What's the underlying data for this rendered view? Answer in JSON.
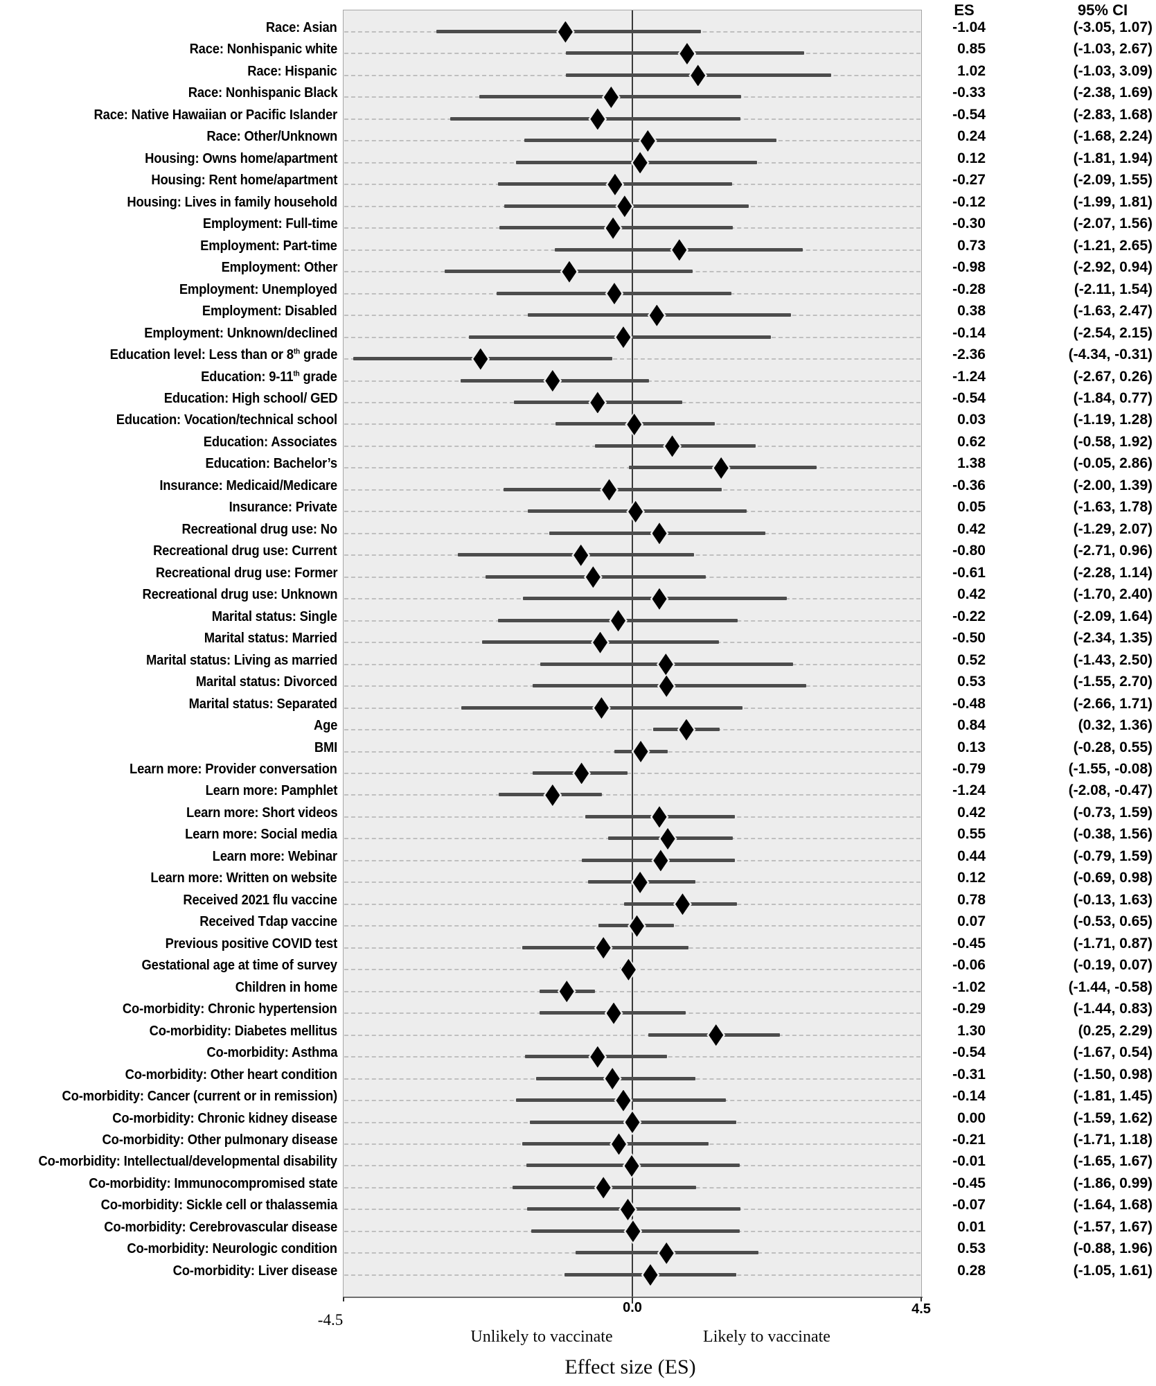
{
  "figure": {
    "columns": {
      "es_header": "ES",
      "ci_header": "95% CI"
    },
    "colors": {
      "plot_background": "#ededed",
      "gridline": "#bfbfbf",
      "ci_line": "#4c4c4c",
      "marker": "#000000",
      "zero_line": "#3a3a3a",
      "text": "#000000"
    }
  },
  "chart_data": {
    "type": "scatter",
    "subtype": "forest-plot",
    "xlabel": "Effect size (ES)",
    "xlim": [
      -4.5,
      4.5
    ],
    "x_ticks": [
      "-4.5",
      "0.0",
      "4.5"
    ],
    "grid": "horizontal-dashed-per-row",
    "annotations": {
      "left_of_zero": "Unlikely to vaccinate",
      "right_of_zero": "Likely to vaccinate"
    },
    "rows": [
      {
        "label": "Race: Asian",
        "es": -1.04,
        "ci": [
          -3.05,
          1.07
        ],
        "es_text": "-1.04",
        "ci_text": "(-3.05, 1.07)"
      },
      {
        "label": "Race: Nonhispanic white",
        "es": 0.85,
        "ci": [
          -1.03,
          2.67
        ],
        "es_text": "0.85",
        "ci_text": "(-1.03, 2.67)"
      },
      {
        "label": "Race: Hispanic",
        "es": 1.02,
        "ci": [
          -1.03,
          3.09
        ],
        "es_text": "1.02",
        "ci_text": "(-1.03, 3.09)"
      },
      {
        "label": "Race: Nonhispanic Black",
        "es": -0.33,
        "ci": [
          -2.38,
          1.69
        ],
        "es_text": "-0.33",
        "ci_text": "(-2.38, 1.69)"
      },
      {
        "label": "Race: Native Hawaiian or Pacific Islander",
        "es": -0.54,
        "ci": [
          -2.83,
          1.68
        ],
        "es_text": "-0.54",
        "ci_text": "(-2.83, 1.68)"
      },
      {
        "label": "Race: Other/Unknown",
        "es": 0.24,
        "ci": [
          -1.68,
          2.24
        ],
        "es_text": "0.24",
        "ci_text": "(-1.68, 2.24)"
      },
      {
        "label": "Housing: Owns home/apartment",
        "es": 0.12,
        "ci": [
          -1.81,
          1.94
        ],
        "es_text": "0.12",
        "ci_text": "(-1.81, 1.94)"
      },
      {
        "label": "Housing: Rent home/apartment",
        "es": -0.27,
        "ci": [
          -2.09,
          1.55
        ],
        "es_text": "-0.27",
        "ci_text": "(-2.09, 1.55)"
      },
      {
        "label": "Housing: Lives in family household",
        "es": -0.12,
        "ci": [
          -1.99,
          1.81
        ],
        "es_text": "-0.12",
        "ci_text": "(-1.99, 1.81)"
      },
      {
        "label": "Employment: Full-time",
        "es": -0.3,
        "ci": [
          -2.07,
          1.56
        ],
        "es_text": "-0.30",
        "ci_text": "(-2.07, 1.56)"
      },
      {
        "label": "Employment: Part-time",
        "es": 0.73,
        "ci": [
          -1.21,
          2.65
        ],
        "es_text": "0.73",
        "ci_text": "(-1.21, 2.65)"
      },
      {
        "label": "Employment: Other",
        "es": -0.98,
        "ci": [
          -2.92,
          0.94
        ],
        "es_text": "-0.98",
        "ci_text": "(-2.92, 0.94)"
      },
      {
        "label": "Employment: Unemployed",
        "es": -0.28,
        "ci": [
          -2.11,
          1.54
        ],
        "es_text": "-0.28",
        "ci_text": "(-2.11, 1.54)"
      },
      {
        "label": "Employment: Disabled",
        "es": 0.38,
        "ci": [
          -1.63,
          2.47
        ],
        "es_text": "0.38",
        "ci_text": "(-1.63, 2.47)"
      },
      {
        "label": "Employment: Unknown/declined",
        "es": -0.14,
        "ci": [
          -2.54,
          2.15
        ],
        "es_text": "-0.14",
        "ci_text": "(-2.54, 2.15)"
      },
      {
        "label": "Education level: Less than or 8th grade",
        "label_segments": [
          "Education level: Less than or 8",
          {
            "sup": "th"
          },
          " grade"
        ],
        "es": -2.36,
        "ci": [
          -4.34,
          -0.31
        ],
        "es_text": "-2.36",
        "ci_text": "(-4.34, -0.31)"
      },
      {
        "label": "Education: 9-11th grade",
        "label_segments": [
          "Education: 9-11",
          {
            "sup": "th"
          },
          " grade"
        ],
        "es": -1.24,
        "ci": [
          -2.67,
          0.26
        ],
        "es_text": "-1.24",
        "ci_text": "(-2.67, 0.26)"
      },
      {
        "label": "Education: High school/ GED",
        "es": -0.54,
        "ci": [
          -1.84,
          0.77
        ],
        "es_text": "-0.54",
        "ci_text": "(-1.84, 0.77)"
      },
      {
        "label": "Education: Vocation/technical school",
        "es": 0.03,
        "ci": [
          -1.19,
          1.28
        ],
        "es_text": "0.03",
        "ci_text": "(-1.19, 1.28)"
      },
      {
        "label": "Education: Associates",
        "es": 0.62,
        "ci": [
          -0.58,
          1.92
        ],
        "es_text": "0.62",
        "ci_text": "(-0.58, 1.92)"
      },
      {
        "label": "Education: Bachelor’s",
        "es": 1.38,
        "ci": [
          -0.05,
          2.86
        ],
        "es_text": "1.38",
        "ci_text": "(-0.05, 2.86)"
      },
      {
        "label": "Insurance: Medicaid/Medicare",
        "es": -0.36,
        "ci": [
          -2.0,
          1.39
        ],
        "es_text": "-0.36",
        "ci_text": "(-2.00, 1.39)"
      },
      {
        "label": "Insurance: Private",
        "es": 0.05,
        "ci": [
          -1.63,
          1.78
        ],
        "es_text": "0.05",
        "ci_text": "(-1.63, 1.78)"
      },
      {
        "label": "Recreational drug use: No",
        "es": 0.42,
        "ci": [
          -1.29,
          2.07
        ],
        "es_text": "0.42",
        "ci_text": "(-1.29, 2.07)"
      },
      {
        "label": "Recreational drug use: Current",
        "es": -0.8,
        "ci": [
          -2.71,
          0.96
        ],
        "es_text": "-0.80",
        "ci_text": "(-2.71, 0.96)"
      },
      {
        "label": "Recreational drug use: Former",
        "es": -0.61,
        "ci": [
          -2.28,
          1.14
        ],
        "es_text": "-0.61",
        "ci_text": "(-2.28, 1.14)"
      },
      {
        "label": "Recreational drug use: Unknown",
        "es": 0.42,
        "ci": [
          -1.7,
          2.4
        ],
        "es_text": "0.42",
        "ci_text": "(-1.70, 2.40)"
      },
      {
        "label": "Marital status: Single",
        "es": -0.22,
        "ci": [
          -2.09,
          1.64
        ],
        "es_text": "-0.22",
        "ci_text": "(-2.09, 1.64)"
      },
      {
        "label": "Marital status: Married",
        "es": -0.5,
        "ci": [
          -2.34,
          1.35
        ],
        "es_text": "-0.50",
        "ci_text": "(-2.34, 1.35)"
      },
      {
        "label": "Marital status: Living as married",
        "es": 0.52,
        "ci": [
          -1.43,
          2.5
        ],
        "es_text": "0.52",
        "ci_text": "(-1.43, 2.50)"
      },
      {
        "label": "Marital status: Divorced",
        "es": 0.53,
        "ci": [
          -1.55,
          2.7
        ],
        "es_text": "0.53",
        "ci_text": "(-1.55, 2.70)"
      },
      {
        "label": "Marital status: Separated",
        "es": -0.48,
        "ci": [
          -2.66,
          1.71
        ],
        "es_text": "-0.48",
        "ci_text": "(-2.66, 1.71)"
      },
      {
        "label": "Age",
        "es": 0.84,
        "ci": [
          0.32,
          1.36
        ],
        "es_text": "0.84",
        "ci_text": "(0.32, 1.36)"
      },
      {
        "label": "BMI",
        "es": 0.13,
        "ci": [
          -0.28,
          0.55
        ],
        "es_text": "0.13",
        "ci_text": "(-0.28, 0.55)"
      },
      {
        "label": "Learn more: Provider conversation",
        "es": -0.79,
        "ci": [
          -1.55,
          -0.08
        ],
        "es_text": "-0.79",
        "ci_text": "(-1.55, -0.08)"
      },
      {
        "label": "Learn more: Pamphlet",
        "es": -1.24,
        "ci": [
          -2.08,
          -0.47
        ],
        "es_text": "-1.24",
        "ci_text": "(-2.08, -0.47)"
      },
      {
        "label": "Learn more: Short videos",
        "es": 0.42,
        "ci": [
          -0.73,
          1.59
        ],
        "es_text": "0.42",
        "ci_text": "(-0.73, 1.59)"
      },
      {
        "label": "Learn more: Social media",
        "es": 0.55,
        "ci": [
          -0.38,
          1.56
        ],
        "es_text": "0.55",
        "ci_text": "(-0.38, 1.56)"
      },
      {
        "label": "Learn more: Webinar",
        "es": 0.44,
        "ci": [
          -0.79,
          1.59
        ],
        "es_text": "0.44",
        "ci_text": "(-0.79, 1.59)"
      },
      {
        "label": "Learn more: Written on website",
        "es": 0.12,
        "ci": [
          -0.69,
          0.98
        ],
        "es_text": "0.12",
        "ci_text": "(-0.69, 0.98)"
      },
      {
        "label": "Received 2021 flu vaccine",
        "es": 0.78,
        "ci": [
          -0.13,
          1.63
        ],
        "es_text": "0.78",
        "ci_text": "(-0.13, 1.63)"
      },
      {
        "label": "Received Tdap vaccine",
        "es": 0.07,
        "ci": [
          -0.53,
          0.65
        ],
        "es_text": "0.07",
        "ci_text": "(-0.53, 0.65)"
      },
      {
        "label": "Previous positive COVID test",
        "es": -0.45,
        "ci": [
          -1.71,
          0.87
        ],
        "es_text": "-0.45",
        "ci_text": "(-1.71, 0.87)"
      },
      {
        "label": "Gestational age at time of survey",
        "es": -0.06,
        "ci": [
          -0.19,
          0.07
        ],
        "es_text": "-0.06",
        "ci_text": "(-0.19, 0.07)"
      },
      {
        "label": "Children in home",
        "es": -1.02,
        "ci": [
          -1.44,
          -0.58
        ],
        "es_text": "-1.02",
        "ci_text": "(-1.44, -0.58)"
      },
      {
        "label": "Co-morbidity: Chronic hypertension",
        "es": -0.29,
        "ci": [
          -1.44,
          0.83
        ],
        "es_text": "-0.29",
        "ci_text": "(-1.44, 0.83)"
      },
      {
        "label": "Co-morbidity: Diabetes mellitus",
        "es": 1.3,
        "ci": [
          0.25,
          2.29
        ],
        "es_text": "1.30",
        "ci_text": "(0.25, 2.29)"
      },
      {
        "label": "Co-morbidity: Asthma",
        "es": -0.54,
        "ci": [
          -1.67,
          0.54
        ],
        "es_text": "-0.54",
        "ci_text": "(-1.67, 0.54)"
      },
      {
        "label": "Co-morbidity: Other heart condition",
        "es": -0.31,
        "ci": [
          -1.5,
          0.98
        ],
        "es_text": "-0.31",
        "ci_text": "(-1.50, 0.98)"
      },
      {
        "label": "Co-morbidity: Cancer (current or in remission)",
        "es": -0.14,
        "ci": [
          -1.81,
          1.45
        ],
        "es_text": "-0.14",
        "ci_text": "(-1.81, 1.45)"
      },
      {
        "label": "Co-morbidity: Chronic kidney disease",
        "es": 0.0,
        "ci": [
          -1.59,
          1.62
        ],
        "es_text": "0.00",
        "ci_text": "(-1.59, 1.62)"
      },
      {
        "label": "Co-morbidity: Other pulmonary disease",
        "es": -0.21,
        "ci": [
          -1.71,
          1.18
        ],
        "es_text": "-0.21",
        "ci_text": "(-1.71, 1.18)"
      },
      {
        "label": "Co-morbidity: Intellectual/developmental disability",
        "es": -0.01,
        "ci": [
          -1.65,
          1.67
        ],
        "es_text": "-0.01",
        "ci_text": "(-1.65, 1.67)"
      },
      {
        "label": "Co-morbidity: Immunocompromised state",
        "es": -0.45,
        "ci": [
          -1.86,
          0.99
        ],
        "es_text": "-0.45",
        "ci_text": "(-1.86, 0.99)"
      },
      {
        "label": "Co-morbidity: Sickle cell or thalassemia",
        "es": -0.07,
        "ci": [
          -1.64,
          1.68
        ],
        "es_text": "-0.07",
        "ci_text": "(-1.64, 1.68)"
      },
      {
        "label": "Co-morbidity: Cerebrovascular disease",
        "es": 0.01,
        "ci": [
          -1.57,
          1.67
        ],
        "es_text": "0.01",
        "ci_text": "(-1.57, 1.67)"
      },
      {
        "label": "Co-morbidity: Neurologic condition",
        "es": 0.53,
        "ci": [
          -0.88,
          1.96
        ],
        "es_text": "0.53",
        "ci_text": "(-0.88, 1.96)"
      },
      {
        "label": "Co-morbidity: Liver disease",
        "es": 0.28,
        "ci": [
          -1.05,
          1.61
        ],
        "es_text": "0.28",
        "ci_text": "(-1.05, 1.61)"
      }
    ]
  }
}
